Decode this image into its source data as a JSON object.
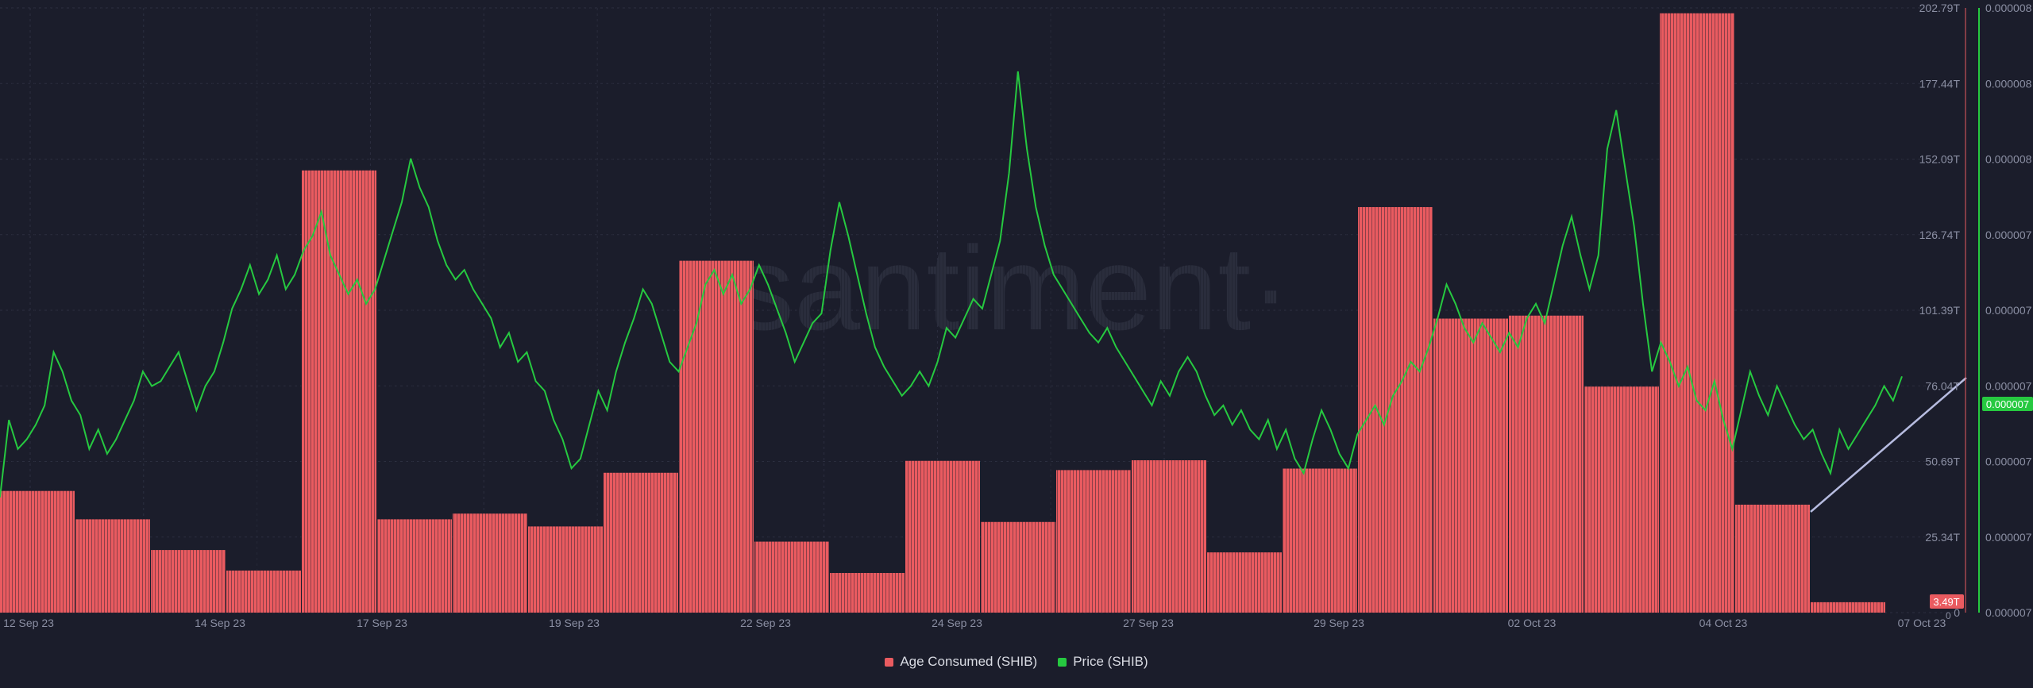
{
  "watermark": "·santiment·",
  "colors": {
    "background": "#1b1d2b",
    "grid": "#2c2f40",
    "bars": "#ea5b60",
    "price": "#26c940",
    "trendline": "#b7bce0",
    "axis_text": "#8b8fa3"
  },
  "chart_data": {
    "type": "bar+line",
    "title": "",
    "x_tick_labels": [
      "12 Sep 23",
      "14 Sep 23",
      "17 Sep 23",
      "19 Sep 23",
      "22 Sep 23",
      "24 Sep 23",
      "27 Sep 23",
      "29 Sep 23",
      "02 Oct 23",
      "04 Oct 23",
      "07 Oct 23"
    ],
    "left_axis": {
      "series": "Age Consumed (SHIB)",
      "unit": "T",
      "ticks": [
        "0",
        "25.34T",
        "50.69T",
        "76.04T",
        "101.39T",
        "126.74T",
        "152.09T",
        "177.44T",
        "202.79T"
      ],
      "ylim": [
        0,
        202.79
      ],
      "last_value_label": "3.49T"
    },
    "right_axis": {
      "series": "Price (SHIB)",
      "ticks": [
        "0.000007",
        "0.000007",
        "0.000007",
        "0.000007",
        "0.000007",
        "0.000007",
        "0.000008",
        "0.000008",
        "0.000008"
      ],
      "last_value_label": "0.000007"
    },
    "bars": {
      "name": "Age Consumed (SHIB)",
      "unit": "T",
      "values": [
        40.8,
        31.3,
        21.0,
        14.1,
        148.3,
        31.3,
        33.2,
        28.9,
        46.9,
        118.0,
        23.8,
        13.3,
        50.9,
        30.4,
        47.8,
        51.1,
        20.2,
        48.3,
        136.0,
        98.6,
        99.6,
        75.8,
        201.0,
        36.2,
        3.49
      ]
    },
    "price": {
      "name": "Price (SHIB)",
      "values_normalized": [
        0.12,
        0.28,
        0.22,
        0.24,
        0.27,
        0.31,
        0.42,
        0.38,
        0.32,
        0.29,
        0.22,
        0.26,
        0.21,
        0.24,
        0.28,
        0.32,
        0.38,
        0.35,
        0.36,
        0.39,
        0.42,
        0.36,
        0.3,
        0.35,
        0.38,
        0.44,
        0.51,
        0.55,
        0.6,
        0.54,
        0.57,
        0.62,
        0.55,
        0.58,
        0.63,
        0.66,
        0.71,
        0.62,
        0.58,
        0.54,
        0.57,
        0.52,
        0.55,
        0.61,
        0.67,
        0.73,
        0.82,
        0.76,
        0.72,
        0.65,
        0.6,
        0.57,
        0.59,
        0.55,
        0.52,
        0.49,
        0.43,
        0.46,
        0.4,
        0.42,
        0.36,
        0.34,
        0.28,
        0.24,
        0.18,
        0.2,
        0.27,
        0.34,
        0.3,
        0.38,
        0.44,
        0.49,
        0.55,
        0.52,
        0.46,
        0.4,
        0.38,
        0.43,
        0.48,
        0.56,
        0.59,
        0.54,
        0.58,
        0.52,
        0.55,
        0.6,
        0.56,
        0.51,
        0.46,
        0.4,
        0.44,
        0.48,
        0.5,
        0.63,
        0.73,
        0.66,
        0.58,
        0.5,
        0.43,
        0.39,
        0.36,
        0.33,
        0.35,
        0.38,
        0.35,
        0.4,
        0.47,
        0.45,
        0.49,
        0.53,
        0.51,
        0.58,
        0.65,
        0.79,
        1.0,
        0.84,
        0.72,
        0.64,
        0.58,
        0.55,
        0.52,
        0.49,
        0.46,
        0.44,
        0.47,
        0.43,
        0.4,
        0.37,
        0.34,
        0.31,
        0.36,
        0.33,
        0.38,
        0.41,
        0.38,
        0.33,
        0.29,
        0.31,
        0.27,
        0.3,
        0.26,
        0.24,
        0.28,
        0.22,
        0.26,
        0.2,
        0.17,
        0.24,
        0.3,
        0.26,
        0.21,
        0.18,
        0.25,
        0.28,
        0.31,
        0.27,
        0.33,
        0.36,
        0.4,
        0.38,
        0.43,
        0.49,
        0.56,
        0.52,
        0.47,
        0.44,
        0.48,
        0.45,
        0.42,
        0.46,
        0.43,
        0.49,
        0.52,
        0.48,
        0.56,
        0.64,
        0.7,
        0.62,
        0.55,
        0.62,
        0.84,
        0.92,
        0.8,
        0.68,
        0.52,
        0.38,
        0.44,
        0.4,
        0.35,
        0.39,
        0.32,
        0.3,
        0.36,
        0.28,
        0.22,
        0.3,
        0.38,
        0.33,
        0.29,
        0.35,
        0.31,
        0.27,
        0.24,
        0.26,
        0.21,
        0.17,
        0.26,
        0.22,
        0.25,
        0.28,
        0.31,
        0.35,
        0.32,
        0.37
      ]
    },
    "legend": [
      {
        "label": "Age Consumed (SHIB)",
        "color": "#ea5b60"
      },
      {
        "label": "Price (SHIB)",
        "color": "#26c940"
      }
    ],
    "legend_position": "bottom-center",
    "grid": true
  }
}
